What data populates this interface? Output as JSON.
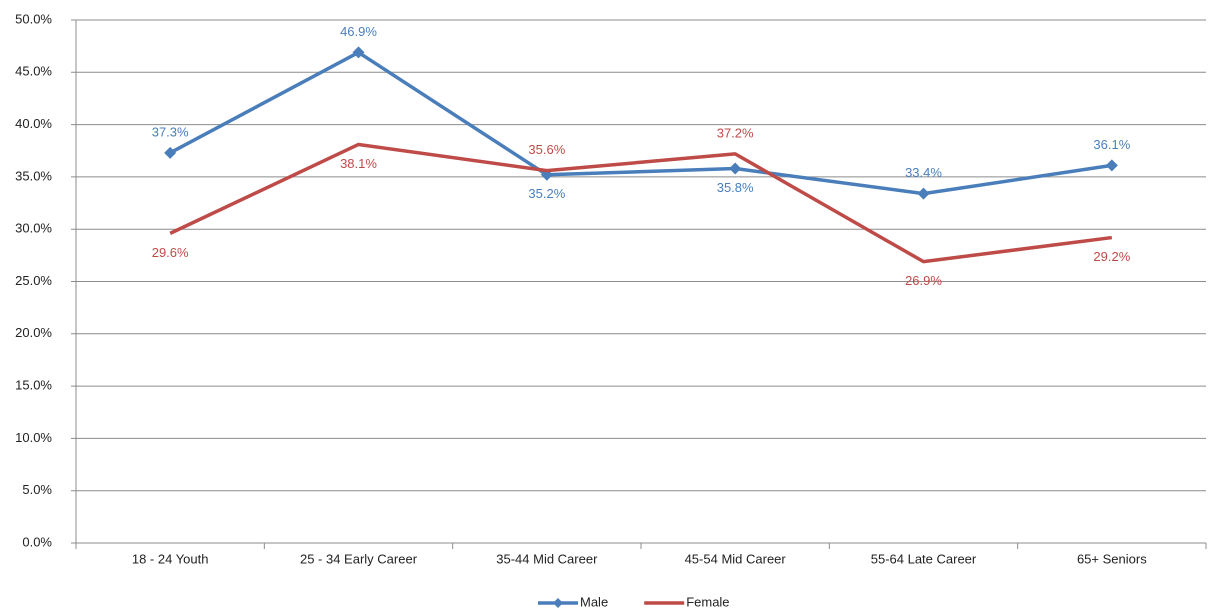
{
  "chart_data": {
    "type": "line",
    "categories": [
      "18 - 24 Youth",
      "25 - 34 Early Career",
      "35-44 Mid Career",
      "45-54 Mid Career",
      "55-64 Late Career",
      "65+ Seniors"
    ],
    "series": [
      {
        "name": "Male",
        "color": "#4a7ebb",
        "marker": "diamond",
        "values": [
          37.3,
          46.9,
          35.2,
          35.8,
          33.4,
          36.1
        ],
        "value_labels": [
          "37.3%",
          "46.9%",
          "35.2%",
          "35.8%",
          "33.4%",
          "36.1%"
        ]
      },
      {
        "name": "Female",
        "color": "#be4b48",
        "values": [
          29.6,
          38.1,
          35.6,
          37.2,
          26.9,
          29.2
        ],
        "value_labels": [
          "29.6%",
          "38.1%",
          "35.6%",
          "37.2%",
          "26.9%",
          "29.2%"
        ]
      }
    ],
    "ylim": [
      0,
      50
    ],
    "yticks": [
      {
        "value": 0,
        "label": "0.0%"
      },
      {
        "value": 5,
        "label": "5.0%"
      },
      {
        "value": 10,
        "label": "10.0%"
      },
      {
        "value": 15,
        "label": "15.0%"
      },
      {
        "value": 20,
        "label": "20.0%"
      },
      {
        "value": 25,
        "label": "25.0%"
      },
      {
        "value": 30,
        "label": "30.0%"
      },
      {
        "value": 35,
        "label": "35.0%"
      },
      {
        "value": 40,
        "label": "40.0%"
      },
      {
        "value": 45,
        "label": "45.0%"
      },
      {
        "value": 50,
        "label": "50.0%"
      }
    ],
    "grid": true,
    "legend": "bottom"
  }
}
